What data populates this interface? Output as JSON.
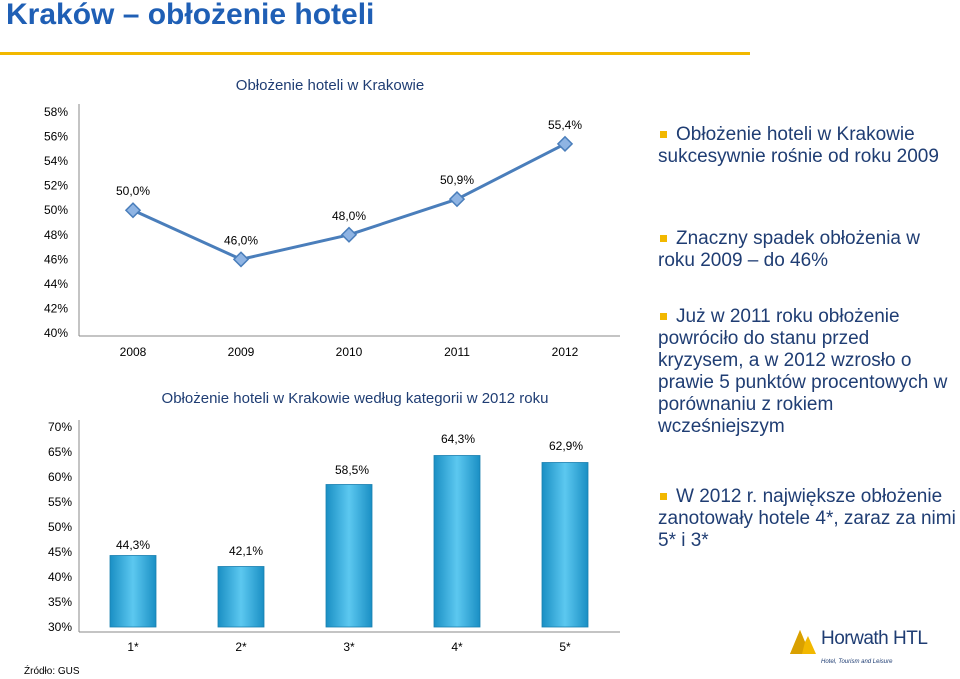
{
  "slide": {
    "title": "Kraków – obłożenie hoteli",
    "source": "Źródło: GUS",
    "accent_color": "#f2b800",
    "title_color": "#1f5fb5",
    "text_color": "#1f3d73"
  },
  "bullets": [
    "Obłożenie hoteli w Krakowie sukcesywnie rośnie od roku 2009",
    "Znaczny spadek obłożenia w roku 2009 – do 46%",
    "Już w 2011 roku obłożenie powróciło do stanu przed kryzysem, a w 2012 wzrosło o prawie 5 punktów procentowych w porównaniu z rokiem wcześniejszym",
    "W 2012 r. największe obłożenie zanotowały hotele 4*, zaraz za nimi 5* i 3*"
  ],
  "logo": {
    "name": "Horwath HTL",
    "tagline": "Hotel, Tourism and Leisure",
    "icon": "horwath-logo-icon"
  },
  "chart_data": [
    {
      "type": "line",
      "title": "Obłożenie hoteli w Krakowie",
      "categories": [
        "2008",
        "2009",
        "2010",
        "2011",
        "2012"
      ],
      "values": [
        50.0,
        46.0,
        48.0,
        50.9,
        55.4
      ],
      "value_labels": [
        "50,0%",
        "46,0%",
        "48,0%",
        "50,9%",
        "55,4%"
      ],
      "ylim": [
        40,
        58
      ],
      "y_ticks": [
        "40%",
        "42%",
        "44%",
        "46%",
        "48%",
        "50%",
        "52%",
        "54%",
        "56%",
        "58%"
      ],
      "grid": false,
      "color": "#4a7ebb"
    },
    {
      "type": "bar",
      "title": "Obłożenie hoteli w Krakowie według kategorii w 2012 roku",
      "categories": [
        "1*",
        "2*",
        "3*",
        "4*",
        "5*"
      ],
      "values": [
        44.3,
        42.1,
        58.5,
        64.3,
        62.9
      ],
      "value_labels": [
        "44,3%",
        "42,1%",
        "58,5%",
        "64,3%",
        "62,9%"
      ],
      "ylim": [
        30,
        70
      ],
      "y_ticks": [
        "30%",
        "35%",
        "40%",
        "45%",
        "50%",
        "55%",
        "60%",
        "65%",
        "70%"
      ],
      "grid": false,
      "color": "#2aa8d8"
    }
  ]
}
